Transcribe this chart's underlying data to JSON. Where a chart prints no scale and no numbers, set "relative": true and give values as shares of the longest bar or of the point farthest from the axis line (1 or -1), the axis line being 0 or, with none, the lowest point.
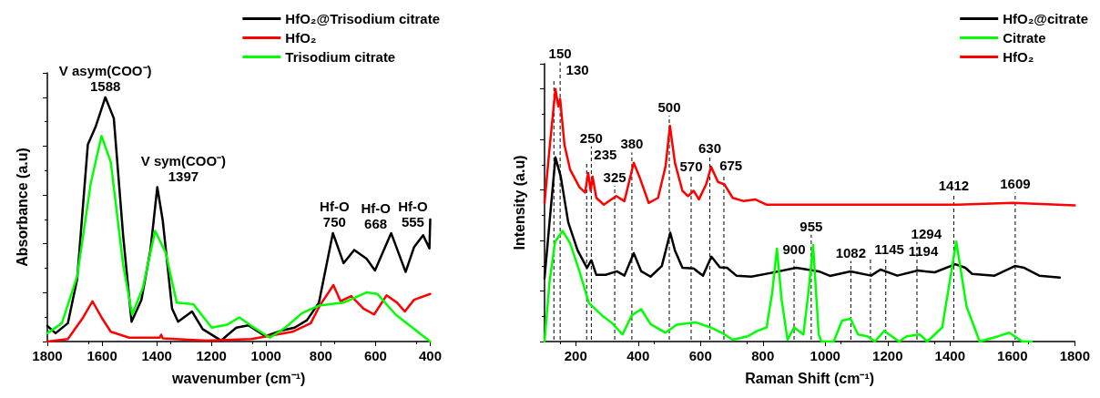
{
  "chart_data": [
    {
      "type": "line",
      "relative": true,
      "xlabel": "wavenumber (cm⁻¹)",
      "ylabel": "Absorbance (a.u)",
      "xlim": [
        1800,
        400
      ],
      "xticks": [
        1800,
        1600,
        1400,
        1200,
        1000,
        800,
        600,
        400
      ],
      "legend": "top right",
      "grid": false,
      "annotations": [
        {
          "text": "V asym(COO⁻)\n1588",
          "x": 1588,
          "y": 1.0
        },
        {
          "text": "V sym(COO⁻)\n1397",
          "x": 1397,
          "y": 0.632
        },
        {
          "text": "Hf-O\n750",
          "x": 750,
          "y": 0.444
        },
        {
          "text": "Hf-O\n668",
          "x": 668,
          "y": 0.375
        },
        {
          "text": "Hf-O\n555",
          "x": 555,
          "y": 0.444
        }
      ],
      "series": [
        {
          "name": "HfO₂@Trisodium citrate",
          "color": "#000000",
          "x": [
            1800,
            1770,
            1725,
            1691,
            1652,
            1624,
            1588,
            1557,
            1523,
            1492,
            1456,
            1423,
            1398,
            1378,
            1344,
            1322,
            1271,
            1232,
            1165,
            1109,
            1065,
            1003,
            941,
            896,
            851,
            807,
            756,
            717,
            678,
            633,
            602,
            543,
            490,
            459,
            426,
            403,
            400
          ],
          "values": [
            0.064,
            0.034,
            0.075,
            0.255,
            0.806,
            0.878,
            1.0,
            0.914,
            0.435,
            0.081,
            0.171,
            0.375,
            0.632,
            0.495,
            0.135,
            0.081,
            0.123,
            0.051,
            0.004,
            0.057,
            0.066,
            0.022,
            0.046,
            0.057,
            0.087,
            0.159,
            0.444,
            0.321,
            0.375,
            0.339,
            0.291,
            0.444,
            0.285,
            0.387,
            0.435,
            0.381,
            0.5
          ]
        },
        {
          "name": "HfO₂",
          "color": "#ff0000",
          "x": [
            1800,
            1725,
            1669,
            1635,
            1602,
            1568,
            1501,
            1389,
            1384,
            1378,
            1221,
            1053,
            904,
            837,
            804,
            754,
            728,
            689,
            644,
            605,
            560,
            521,
            493,
            459,
            400
          ],
          "values": [
            0,
            0.01,
            0.099,
            0.165,
            0.099,
            0.04,
            0.016,
            0.016,
            0.028,
            0.013,
            0.004,
            0.01,
            0.04,
            0.075,
            0.147,
            0.231,
            0.165,
            0.186,
            0.135,
            0.111,
            0.189,
            0.159,
            0.123,
            0.171,
            0.195
          ]
        },
        {
          "name": "Trisodium citrate",
          "color": "#00ff00",
          "x": [
            1800,
            1747,
            1691,
            1641,
            1602,
            1568,
            1523,
            1490,
            1451,
            1406,
            1367,
            1327,
            1266,
            1199,
            1143,
            1098,
            1053,
            986,
            930,
            868,
            807,
            717,
            633,
            594,
            527,
            459,
            400
          ],
          "values": [
            0.034,
            0.075,
            0.267,
            0.65,
            0.842,
            0.734,
            0.315,
            0.111,
            0.219,
            0.453,
            0.363,
            0.159,
            0.153,
            0.057,
            0.069,
            0.099,
            0.063,
            0.016,
            0.057,
            0.117,
            0.147,
            0.159,
            0.201,
            0.195,
            0.111,
            0.051,
            0.0
          ]
        }
      ]
    },
    {
      "type": "line",
      "relative": true,
      "xlabel": "Raman Shift (cm⁻¹)",
      "ylabel": "Intensity (a.u)",
      "xlim": [
        100,
        1800
      ],
      "xticks": [
        200,
        400,
        600,
        800,
        1000,
        1200,
        1400,
        1600,
        1800
      ],
      "legend": "top right",
      "grid": false,
      "ref_lines": [
        {
          "axis": "x",
          "value": 130,
          "label": "130",
          "line_style": "dashed"
        },
        {
          "axis": "x",
          "value": 150,
          "label": "150",
          "line_style": "dashed"
        },
        {
          "axis": "x",
          "value": 235,
          "label": "235",
          "line_style": "dashed"
        },
        {
          "axis": "x",
          "value": 250,
          "label": "250",
          "line_style": "dashed"
        },
        {
          "axis": "x",
          "value": 325,
          "label": "325",
          "line_style": "dashed"
        },
        {
          "axis": "x",
          "value": 380,
          "label": "380",
          "line_style": "dashed"
        },
        {
          "axis": "x",
          "value": 500,
          "label": "500",
          "line_style": "dashed"
        },
        {
          "axis": "x",
          "value": 570,
          "label": "570",
          "line_style": "dashed"
        },
        {
          "axis": "x",
          "value": 630,
          "label": "630",
          "line_style": "dashed"
        },
        {
          "axis": "x",
          "value": 675,
          "label": "675",
          "line_style": "dashed"
        },
        {
          "axis": "x",
          "value": 900,
          "label": "900",
          "line_style": "dashed"
        },
        {
          "axis": "x",
          "value": 955,
          "label": "955",
          "line_style": "dashed"
        },
        {
          "axis": "x",
          "value": 1082,
          "label": "1082",
          "line_style": "dashed"
        },
        {
          "axis": "x",
          "value": 1145,
          "label": "1145",
          "line_style": "dashed"
        },
        {
          "axis": "x",
          "value": 1194,
          "label": "1194",
          "line_style": "dashed"
        },
        {
          "axis": "x",
          "value": 1294,
          "label": "1294",
          "line_style": "dashed"
        },
        {
          "axis": "x",
          "value": 1412,
          "label": "1412",
          "line_style": "dashed"
        },
        {
          "axis": "x",
          "value": 1609,
          "label": "1609",
          "line_style": "dashed"
        }
      ],
      "series": [
        {
          "name": "HfO₂@citrate",
          "color": "#000000",
          "x": [
            100,
            116,
            135,
            152,
            176,
            206,
            236,
            250,
            266,
            296,
            332,
            356,
            386,
            410,
            440,
            476,
            503,
            518,
            542,
            578,
            608,
            635,
            662,
            685,
            715,
            763,
            823,
            907,
            979,
            1015,
            1081,
            1147,
            1177,
            1231,
            1297,
            1351,
            1417,
            1449,
            1471,
            1543,
            1608,
            1638,
            1686,
            1752
          ],
          "values": [
            0.25,
            0.472,
            0.729,
            0.653,
            0.472,
            0.361,
            0.292,
            0.322,
            0.264,
            0.264,
            0.278,
            0.261,
            0.35,
            0.278,
            0.257,
            0.299,
            0.431,
            0.361,
            0.292,
            0.289,
            0.261,
            0.336,
            0.294,
            0.292,
            0.261,
            0.257,
            0.271,
            0.292,
            0.278,
            0.26,
            0.278,
            0.261,
            0.285,
            0.261,
            0.281,
            0.274,
            0.306,
            0.292,
            0.268,
            0.261,
            0.299,
            0.292,
            0.261,
            0.253
          ]
        },
        {
          "name": "Citrate",
          "color": "#00ff00",
          "x": [
            100,
            116,
            134,
            158,
            182,
            212,
            242,
            290,
            314,
            350,
            380,
            410,
            440,
            488,
            524,
            584,
            632,
            668,
            703,
            752,
            782,
            812,
            830,
            845,
            860,
            879,
            900,
            930,
            946,
            961,
            979,
            988,
            1027,
            1054,
            1081,
            1105,
            1135,
            1159,
            1189,
            1237,
            1261,
            1303,
            1327,
            1375,
            1420,
            1453,
            1495,
            1555,
            1590,
            1632,
            1662
          ],
          "values": [
            0,
            0.236,
            0.396,
            0.438,
            0.389,
            0.278,
            0.153,
            0.097,
            0.076,
            0.028,
            0.104,
            0.128,
            0.069,
            0.035,
            0.067,
            0.076,
            0.056,
            0.035,
            0.007,
            0.021,
            0.042,
            0.056,
            0.194,
            0.368,
            0.167,
            0.007,
            0.056,
            0.028,
            0.194,
            0.382,
            0.028,
            0,
            0,
            0.083,
            0.09,
            0.028,
            0.021,
            0,
            0.042,
            0,
            0.021,
            0.028,
            0,
            0.056,
            0.396,
            0.139,
            0,
            0.021,
            0.035,
            0,
            0
          ]
        },
        {
          "name": "HfO₂",
          "color": "#ff0000",
          "x": [
            100,
            116,
            135,
            144,
            150,
            164,
            182,
            212,
            230,
            240,
            248,
            254,
            266,
            290,
            330,
            356,
            386,
            404,
            434,
            464,
            488,
            502,
            518,
            542,
            560,
            578,
            595,
            619,
            634,
            656,
            677,
            703,
            739,
            775,
            811,
            1063,
            1422,
            1602,
            1800
          ],
          "values": [
            0.549,
            0.764,
            1.0,
            0.931,
            0.961,
            0.778,
            0.681,
            0.611,
            0.59,
            0.667,
            0.597,
            0.653,
            0.569,
            0.542,
            0.576,
            0.556,
            0.708,
            0.653,
            0.549,
            0.569,
            0.694,
            0.854,
            0.708,
            0.597,
            0.576,
            0.597,
            0.563,
            0.625,
            0.692,
            0.632,
            0.622,
            0.569,
            0.556,
            0.563,
            0.542,
            0.542,
            0.542,
            0.549,
            0.539
          ]
        }
      ]
    }
  ]
}
